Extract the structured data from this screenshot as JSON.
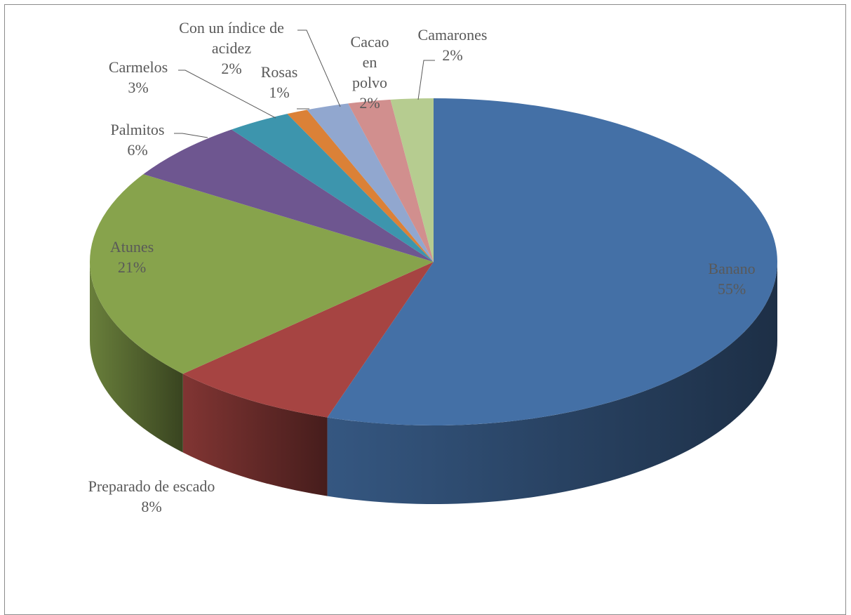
{
  "chart_data": {
    "type": "pie",
    "style": "3d",
    "title": "",
    "slices": [
      {
        "label": "Banano",
        "value": 55,
        "pct_text": "55%",
        "color": "#4470A6"
      },
      {
        "label": "Preparado de escado",
        "value": 8,
        "pct_text": "8%",
        "color": "#A64442"
      },
      {
        "label": "Atunes",
        "value": 21,
        "pct_text": "21%",
        "color": "#87A34C"
      },
      {
        "label": "Palmitos",
        "value": 6,
        "pct_text": "6%",
        "color": "#6E5690"
      },
      {
        "label": "Carmelos",
        "value": 3,
        "pct_text": "3%",
        "color": "#3D95AD"
      },
      {
        "label": "Rosas",
        "value": 1,
        "pct_text": "1%",
        "color": "#DB8137"
      },
      {
        "label": "Con un índice de acidez",
        "value": 2,
        "pct_text": "2%",
        "color": "#91A7CF"
      },
      {
        "label": "Cacao en polvo",
        "value": 2,
        "pct_text": "2%",
        "color": "#D18F8E"
      },
      {
        "label": "Camarones",
        "value": 2,
        "pct_text": "2%",
        "color": "#B6CC90"
      }
    ]
  }
}
